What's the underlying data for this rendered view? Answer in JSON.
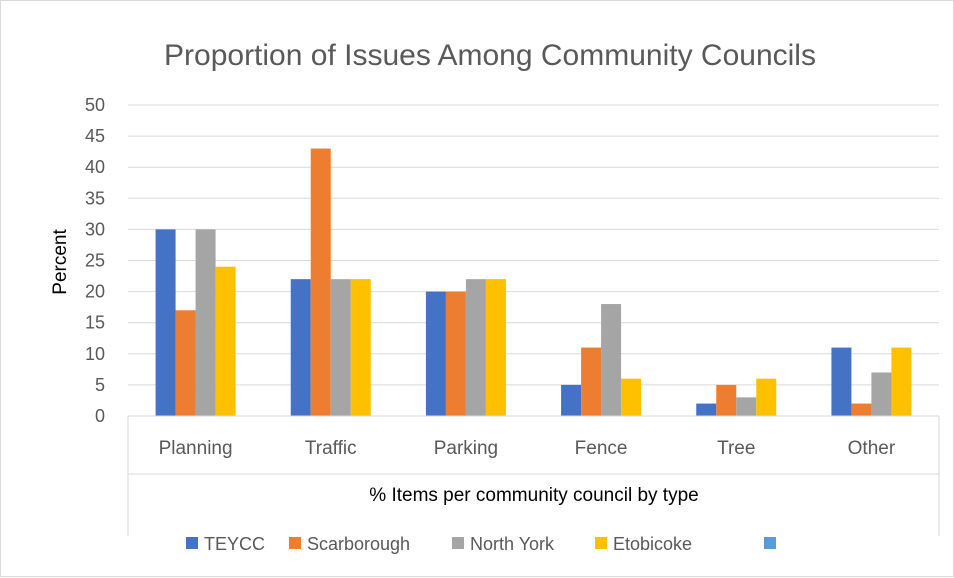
{
  "chart_data": {
    "type": "bar",
    "title": "Proportion of Issues Among Community Councils",
    "ylabel": "Percent",
    "xlabel": "% Items per community council by type",
    "ylim": [
      0,
      50
    ],
    "ytick_step": 5,
    "grid": true,
    "legend_position": "bottom",
    "categories": [
      "Planning",
      "Traffic",
      "Parking",
      "Fence",
      "Tree",
      "Other"
    ],
    "series": [
      {
        "name": "TEYCC",
        "color": "#4472c4",
        "values": [
          30,
          22,
          20,
          5,
          2,
          11
        ]
      },
      {
        "name": "Scarborough",
        "color": "#ed7d31",
        "values": [
          17,
          43,
          20,
          11,
          5,
          2
        ]
      },
      {
        "name": "North York",
        "color": "#a5a5a5",
        "values": [
          30,
          22,
          22,
          18,
          3,
          7
        ]
      },
      {
        "name": "Etobicoke",
        "color": "#ffc000",
        "values": [
          24,
          22,
          22,
          6,
          6,
          11
        ]
      }
    ],
    "legend_extra_swatch": {
      "color": "#5b9bd5",
      "label": ""
    }
  }
}
